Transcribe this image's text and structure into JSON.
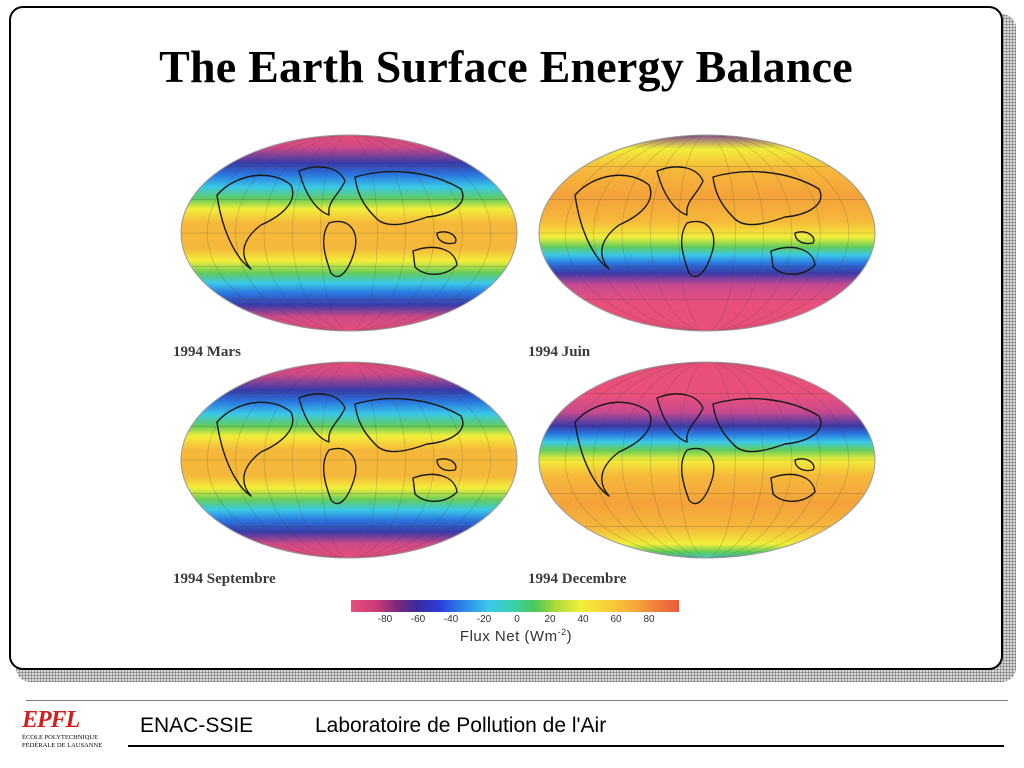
{
  "slide": {
    "title": "The Earth Surface Energy Balance"
  },
  "maps": [
    {
      "label": "1994 Mars",
      "pattern": "equinox"
    },
    {
      "label": "1994 Juin",
      "pattern": "june"
    },
    {
      "label": "1994 Septembre",
      "pattern": "equinox"
    },
    {
      "label": "1994 Decembre",
      "pattern": "december"
    }
  ],
  "colorbar": {
    "ticks": [
      "-80",
      "-60",
      "-40",
      "-20",
      "0",
      "20",
      "40",
      "60",
      "80"
    ],
    "label_text": "Flux Net (Wm",
    "label_exp": "-2",
    "label_close": ")",
    "colors": [
      "#e8507a",
      "#7a2a7a",
      "#2a3ed8",
      "#3ac8e8",
      "#48c85a",
      "#f2ee3a",
      "#f4a03a",
      "#e85a3a"
    ]
  },
  "footer": {
    "logo_mark": "EPFL",
    "logo_line1": "ÉCOLE POLYTECHNIQUE",
    "logo_line2": "FÉDÉRALE DE LAUSANNE",
    "unit": "ENAC-SSIE",
    "lab": "Laboratoire de Pollution de l'Air"
  }
}
